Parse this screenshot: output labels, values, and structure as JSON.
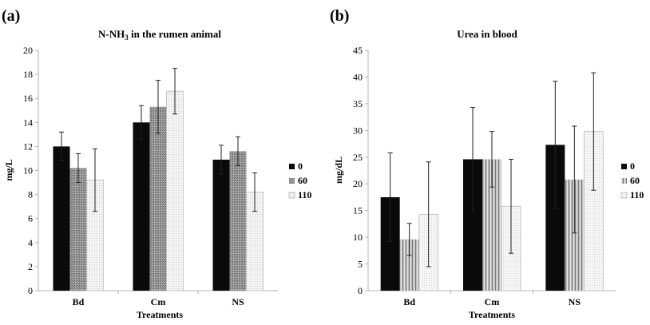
{
  "colors": {
    "s0": "#0a0a0a",
    "s60": "#8c8c8c",
    "s110": "#f2f2f2",
    "axis": "#b3b3b3",
    "error": "#222222"
  },
  "chart_data": [
    {
      "panel": "(a)",
      "type": "bar",
      "title": "N-NH3 in the rumen animal",
      "title_main": "N-NH",
      "title_sub": "3",
      "title_rest": " in the rumen animal",
      "xlabel": "Treatments",
      "ylabel": "mg/L",
      "ylim": [
        0,
        20
      ],
      "yticks": [
        0,
        2,
        4,
        6,
        8,
        10,
        12,
        14,
        16,
        18,
        20
      ],
      "categories": [
        "Bd",
        "Cm",
        "NS"
      ],
      "series": [
        {
          "name": "0",
          "values": [
            12.0,
            14.0,
            10.9
          ],
          "errors": [
            1.2,
            1.4,
            1.2
          ]
        },
        {
          "name": "60",
          "values": [
            10.2,
            15.3,
            11.6
          ],
          "errors": [
            1.2,
            2.2,
            1.2
          ]
        },
        {
          "name": "110",
          "values": [
            9.2,
            16.6,
            8.2
          ],
          "errors": [
            2.6,
            1.9,
            1.6
          ]
        }
      ],
      "legend_position": "right"
    },
    {
      "panel": "(b)",
      "type": "bar",
      "title": "Urea in blood",
      "xlabel": "Treatments",
      "ylabel": "mg/dL",
      "ylim": [
        0,
        45
      ],
      "yticks": [
        0,
        5,
        10,
        15,
        20,
        25,
        30,
        35,
        40,
        45
      ],
      "categories": [
        "Bd",
        "Cm",
        "NS"
      ],
      "series": [
        {
          "name": "0",
          "values": [
            17.5,
            24.6,
            27.3
          ],
          "errors": [
            8.3,
            9.7,
            11.9
          ]
        },
        {
          "name": "60",
          "values": [
            9.6,
            24.6,
            20.8
          ],
          "errors": [
            3.0,
            5.2,
            10.0
          ]
        },
        {
          "name": "110",
          "values": [
            14.3,
            15.8,
            29.8
          ],
          "errors": [
            9.8,
            8.8,
            11.0
          ]
        }
      ],
      "legend_position": "right"
    }
  ]
}
